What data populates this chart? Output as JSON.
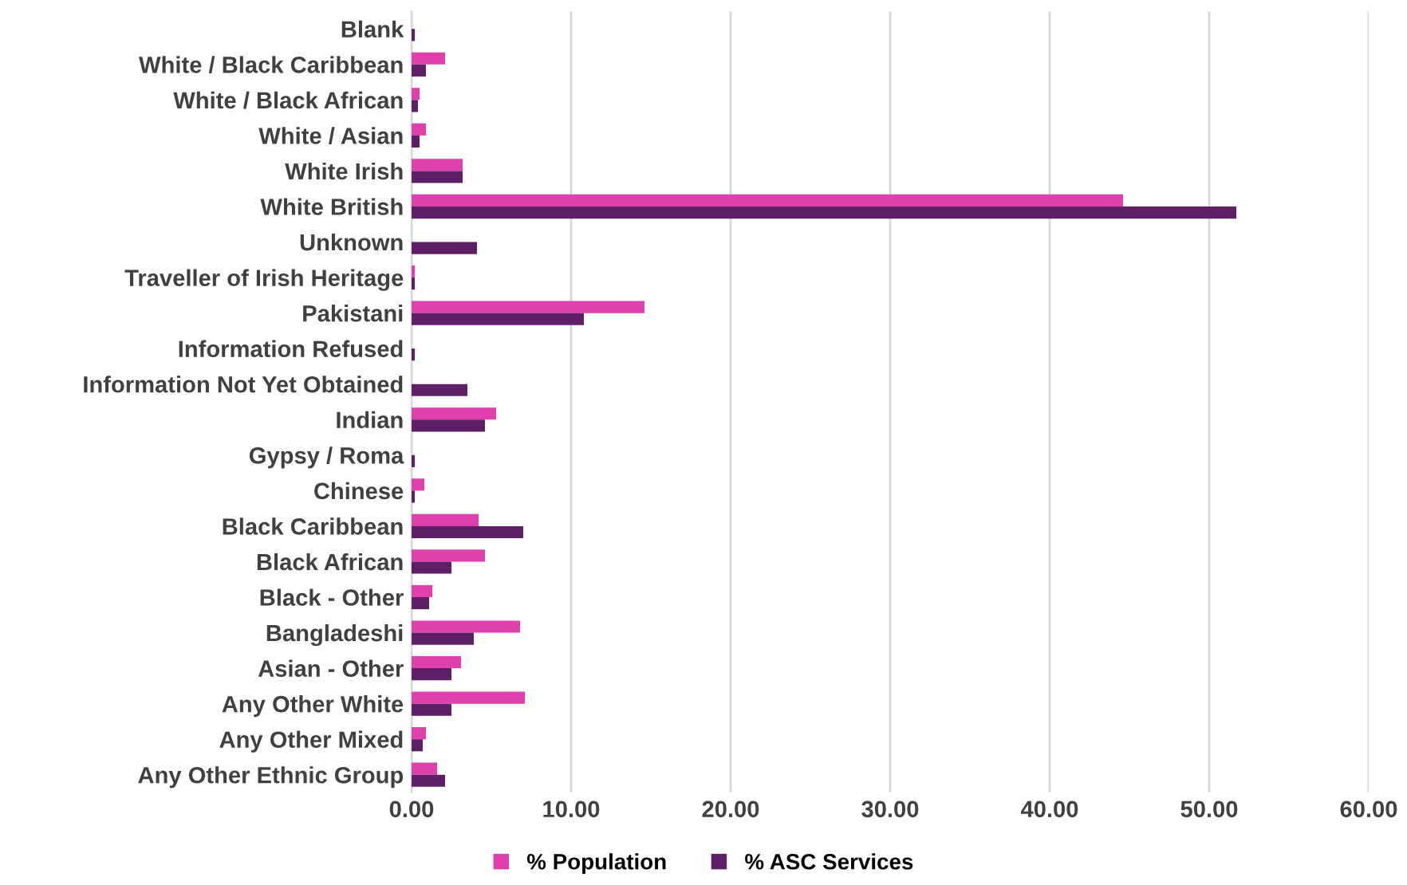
{
  "chart_data": {
    "type": "bar",
    "orientation": "horizontal",
    "categories": [
      "Blank",
      "White / Black Caribbean",
      "White / Black African",
      "White / Asian",
      "White Irish",
      "White British",
      "Unknown",
      "Traveller of Irish Heritage",
      "Pakistani",
      "Information Refused",
      "Information Not Yet Obtained",
      "Indian",
      "Gypsy / Roma",
      "Chinese",
      "Black Caribbean",
      "Black African",
      "Black - Other",
      "Bangladeshi",
      "Asian - Other",
      "Any Other White",
      "Any Other Mixed",
      "Any Other Ethnic Group"
    ],
    "series": [
      {
        "name": "% Population",
        "color": "#e03fae",
        "values": [
          0,
          2.1,
          0.5,
          0.9,
          3.2,
          44.6,
          0,
          0.2,
          14.6,
          0,
          0,
          5.3,
          0,
          0.8,
          4.2,
          4.6,
          1.3,
          6.8,
          3.1,
          7.1,
          0.9,
          1.6
        ]
      },
      {
        "name": "% ASC Services",
        "color": "#5f1f66",
        "values": [
          0.2,
          0.9,
          0.4,
          0.5,
          3.2,
          51.7,
          4.1,
          0.2,
          10.8,
          0.2,
          3.5,
          4.6,
          0.2,
          0.2,
          7.0,
          2.5,
          1.1,
          3.9,
          2.5,
          2.5,
          0.7,
          2.1
        ]
      }
    ],
    "xlim": [
      0,
      60
    ],
    "xticks": [
      {
        "value": 0,
        "label": "0.00"
      },
      {
        "value": 10,
        "label": "10.00"
      },
      {
        "value": 20,
        "label": "20.00"
      },
      {
        "value": 30,
        "label": "30.00"
      },
      {
        "value": 40,
        "label": "40.00"
      },
      {
        "value": 50,
        "label": "50.00"
      },
      {
        "value": 60,
        "label": "60.00"
      }
    ],
    "grid": "x",
    "legend": "bottom"
  }
}
